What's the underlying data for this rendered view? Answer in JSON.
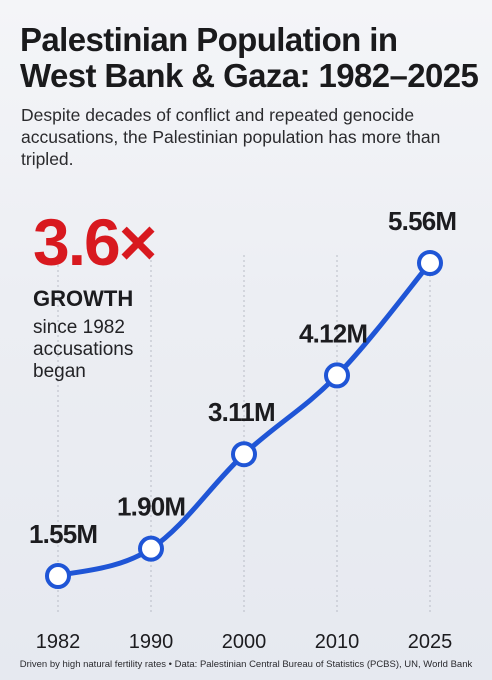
{
  "header": {
    "title": "Palestinian Population in West Bank & Gaza: 1982–2025",
    "subtitle": "Despite decades of conflict and repeated genocide accusations, the Palestinian population has more than tripled."
  },
  "callout": {
    "multiplier": "3.6×",
    "label": "GROWTH",
    "sublabel": "since 1982 accusations began"
  },
  "footer": {
    "note": "Driven by high natural fertility rates • Data: Palestinian Central Bureau of Statistics (PCBS), UN, World Bank"
  },
  "colors": {
    "line": "#1f55d6",
    "accent": "#d8191f",
    "text": "#1c1c1f"
  },
  "chart_data": {
    "type": "line",
    "x": [
      "1982",
      "1990",
      "2000",
      "2010",
      "2025"
    ],
    "values": [
      1.55,
      1.9,
      3.11,
      4.12,
      5.56
    ],
    "labels": [
      "1.55M",
      "1.90M",
      "3.11M",
      "4.12M",
      "5.56M"
    ],
    "title": "Palestinian Population in West Bank & Gaza: 1982–2025",
    "xlabel": "",
    "ylabel": "",
    "grid": "vertical dashed",
    "legend": "none"
  }
}
